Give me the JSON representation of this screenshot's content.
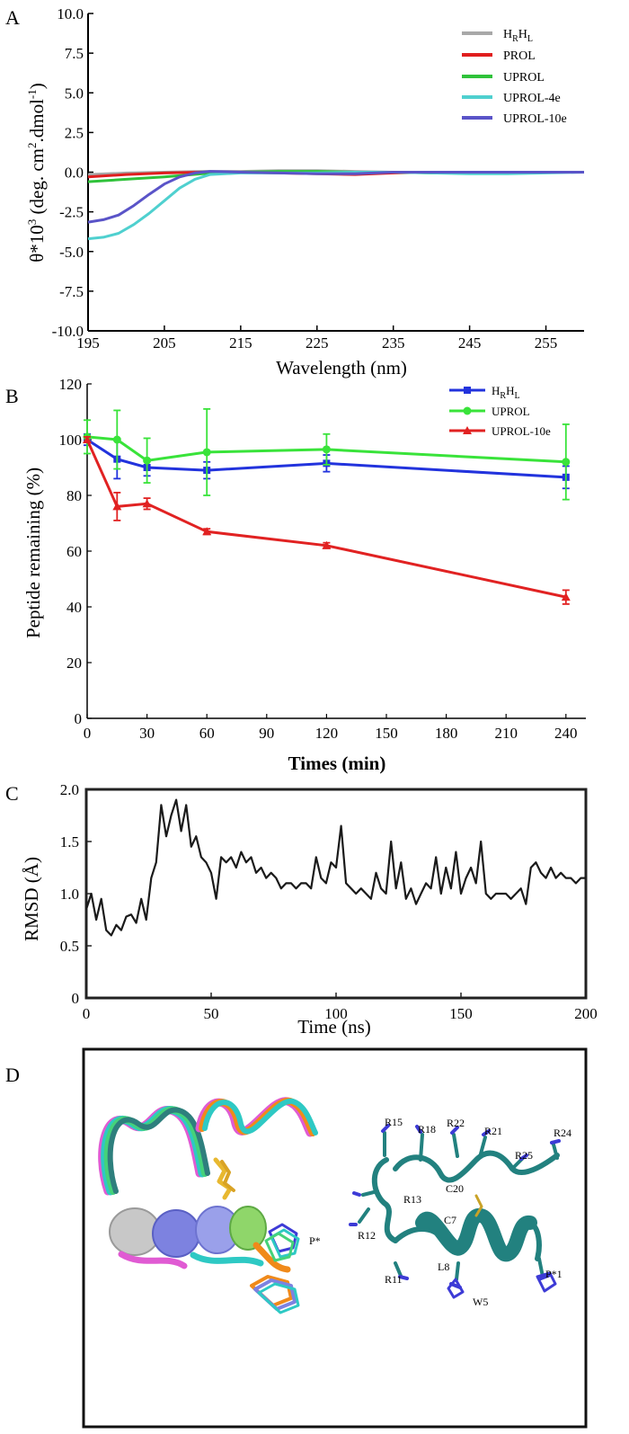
{
  "panels": {
    "a": "A",
    "b": "B",
    "c": "C",
    "d": "D"
  },
  "colors": {
    "grey": "#a8a8a8",
    "red": "#e01e1e",
    "green": "#2fc23a",
    "cyan": "#4fd0cf",
    "purple": "#5a54c8",
    "blue": "#2233dd",
    "bgreen": "#39e33a",
    "bred": "#e12222",
    "teal": "#22817f"
  },
  "chart_data": [
    {
      "type": "line",
      "title": "",
      "xlabel": "Wavelength (nm)",
      "ylabel_main": "θ*10",
      "ylabel_exp": "3",
      "ylabel_units": "(deg. cm",
      "ylabel_units_exp": "2",
      "ylabel_units_end": ".dmol",
      "ylabel_units_end_exp": "-1",
      "ylabel_close": ")",
      "xlim": [
        195,
        260
      ],
      "ylim": [
        -10.0,
        10.0
      ],
      "xticks": [
        195,
        205,
        215,
        225,
        235,
        245,
        255
      ],
      "yticks": [
        "10.0",
        "7.5",
        "5.0",
        "2.5",
        "0.0",
        "-2.5",
        "-5.0",
        "-7.5",
        "-10.0"
      ],
      "ytick_values": [
        10.0,
        7.5,
        5.0,
        2.5,
        0.0,
        -2.5,
        -5.0,
        -7.5,
        -10.0
      ],
      "series": [
        {
          "name_main": "H",
          "name_sub1": "R",
          "name_mid": "H",
          "name_sub2": "L",
          "color": "#a8a8a8",
          "x": [
            195,
            200,
            205,
            210,
            215,
            220,
            225,
            230,
            235,
            240,
            245,
            250,
            255,
            260
          ],
          "y": [
            -0.15,
            -0.05,
            0.0,
            0.05,
            0.05,
            0.1,
            0.1,
            0.05,
            0.0,
            0.0,
            0.0,
            0.0,
            0.0,
            0.0
          ]
        },
        {
          "name": "PROL",
          "color": "#e01e1e",
          "x": [
            195,
            200,
            205,
            210,
            215,
            220,
            225,
            230,
            235,
            240,
            245,
            250,
            255,
            260
          ],
          "y": [
            -0.3,
            -0.15,
            -0.05,
            0.0,
            0.0,
            -0.05,
            -0.1,
            -0.15,
            -0.05,
            0.0,
            0.0,
            0.0,
            0.0,
            0.0
          ]
        },
        {
          "name": "UPROL",
          "color": "#2fc23a",
          "x": [
            195,
            200,
            205,
            210,
            215,
            220,
            225,
            230,
            235,
            240,
            245,
            250,
            255,
            260
          ],
          "y": [
            -0.6,
            -0.45,
            -0.3,
            -0.1,
            0.0,
            0.05,
            0.05,
            0.0,
            0.0,
            -0.05,
            -0.05,
            -0.05,
            0.0,
            0.0
          ]
        },
        {
          "name": "UPROL-4e",
          "color": "#4fd0cf",
          "x": [
            195,
            197,
            199,
            201,
            203,
            205,
            207,
            209,
            211,
            215,
            220,
            225,
            230,
            235,
            240,
            245,
            250,
            255,
            260
          ],
          "y": [
            -4.2,
            -4.1,
            -3.85,
            -3.3,
            -2.6,
            -1.8,
            -1.0,
            -0.45,
            -0.15,
            -0.05,
            -0.05,
            -0.05,
            0.0,
            0.0,
            -0.05,
            -0.1,
            -0.1,
            -0.05,
            0.0
          ]
        },
        {
          "name": "UPROL-10e",
          "color": "#5a54c8",
          "x": [
            195,
            197,
            199,
            201,
            203,
            205,
            207,
            209,
            211,
            215,
            220,
            225,
            230,
            235,
            240,
            245,
            250,
            255,
            260
          ],
          "y": [
            -3.15,
            -3.0,
            -2.7,
            -2.1,
            -1.4,
            -0.75,
            -0.3,
            -0.05,
            0.05,
            0.0,
            -0.05,
            -0.1,
            -0.1,
            0.0,
            0.0,
            0.0,
            0.0,
            0.0,
            0.0
          ]
        }
      ]
    },
    {
      "type": "line",
      "title": "",
      "xlabel": "Times (min)",
      "ylabel": "Peptide remaining (%)",
      "xlim": [
        0,
        250
      ],
      "ylim": [
        0,
        120
      ],
      "xticks": [
        0,
        30,
        60,
        90,
        120,
        150,
        180,
        210,
        240
      ],
      "yticks": [
        0,
        20,
        40,
        60,
        80,
        100,
        120
      ],
      "series": [
        {
          "name_main": "H",
          "name_sub1": "R",
          "name_mid": "H",
          "name_sub2": "L",
          "color": "#2233dd",
          "marker": "square",
          "x": [
            0,
            15,
            30,
            60,
            120,
            240
          ],
          "y": [
            100,
            93,
            90,
            89,
            91.5,
            86.5
          ],
          "err": [
            2,
            7,
            3,
            3,
            3,
            4
          ]
        },
        {
          "name": "UPROL",
          "color": "#39e33a",
          "marker": "circle",
          "x": [
            0,
            15,
            30,
            60,
            120,
            240
          ],
          "y": [
            101,
            100,
            92.5,
            95.5,
            96.5,
            92
          ],
          "err": [
            6,
            10.5,
            8,
            15.5,
            5.5,
            13.5
          ]
        },
        {
          "name": "UPROL-10e",
          "color": "#e12222",
          "marker": "triangle",
          "x": [
            0,
            15,
            30,
            60,
            120,
            240
          ],
          "y": [
            100,
            76,
            77,
            67,
            62,
            43.5
          ],
          "err": [
            1,
            5,
            2,
            1,
            1,
            2.5
          ]
        }
      ]
    },
    {
      "type": "line",
      "title": "",
      "xlabel": "Time (ns)",
      "ylabel": "RMSD (Å)",
      "xlim": [
        0,
        200
      ],
      "ylim": [
        0,
        2.0
      ],
      "xticks": [
        0,
        50,
        100,
        150,
        200
      ],
      "yticks": [
        "0",
        "0.5",
        "1.0",
        "1.5",
        "2.0"
      ],
      "ytick_values": [
        0,
        0.5,
        1.0,
        1.5,
        2.0
      ],
      "series": [
        {
          "name": "RMSD",
          "color": "#1a1a1a",
          "x": [
            0,
            2,
            4,
            6,
            8,
            10,
            12,
            14,
            16,
            18,
            20,
            22,
            24,
            26,
            28,
            30,
            32,
            34,
            36,
            38,
            40,
            42,
            44,
            46,
            48,
            50,
            52,
            54,
            56,
            58,
            60,
            62,
            64,
            66,
            68,
            70,
            72,
            74,
            76,
            78,
            80,
            82,
            84,
            86,
            88,
            90,
            92,
            94,
            96,
            98,
            100,
            102,
            104,
            106,
            108,
            110,
            112,
            114,
            116,
            118,
            120,
            122,
            124,
            126,
            128,
            130,
            132,
            134,
            136,
            138,
            140,
            142,
            144,
            146,
            148,
            150,
            152,
            154,
            156,
            158,
            160,
            162,
            164,
            166,
            168,
            170,
            172,
            174,
            176,
            178,
            180,
            182,
            184,
            186,
            188,
            190,
            192,
            194,
            196,
            198,
            200
          ],
          "y": [
            0.85,
            1.0,
            0.75,
            0.95,
            0.65,
            0.6,
            0.7,
            0.65,
            0.78,
            0.8,
            0.72,
            0.95,
            0.75,
            1.15,
            1.3,
            1.85,
            1.55,
            1.75,
            1.9,
            1.6,
            1.85,
            1.45,
            1.55,
            1.35,
            1.3,
            1.2,
            0.95,
            1.35,
            1.3,
            1.35,
            1.25,
            1.4,
            1.3,
            1.35,
            1.2,
            1.25,
            1.15,
            1.2,
            1.15,
            1.05,
            1.1,
            1.1,
            1.05,
            1.1,
            1.1,
            1.05,
            1.35,
            1.15,
            1.1,
            1.3,
            1.25,
            1.65,
            1.1,
            1.05,
            1.0,
            1.05,
            1.0,
            0.95,
            1.2,
            1.05,
            1.0,
            1.5,
            1.05,
            1.3,
            0.95,
            1.05,
            0.9,
            1.0,
            1.1,
            1.05,
            1.35,
            1.0,
            1.25,
            1.05,
            1.4,
            1.0,
            1.15,
            1.25,
            1.1,
            1.5,
            1.0,
            0.95,
            1.0,
            1.0,
            1.0,
            0.95,
            1.0,
            1.05,
            0.9,
            1.25,
            1.3,
            1.2,
            1.15,
            1.25,
            1.15,
            1.2,
            1.15,
            1.15,
            1.1,
            1.15,
            1.15
          ]
        }
      ]
    }
  ],
  "panel_d": {
    "left_label": "P*",
    "residues": [
      "R15",
      "R18",
      "R22",
      "R21",
      "R25",
      "R24",
      "C20",
      "R13",
      "C7",
      "R12",
      "R11",
      "L8",
      "W5",
      "P*1"
    ]
  }
}
